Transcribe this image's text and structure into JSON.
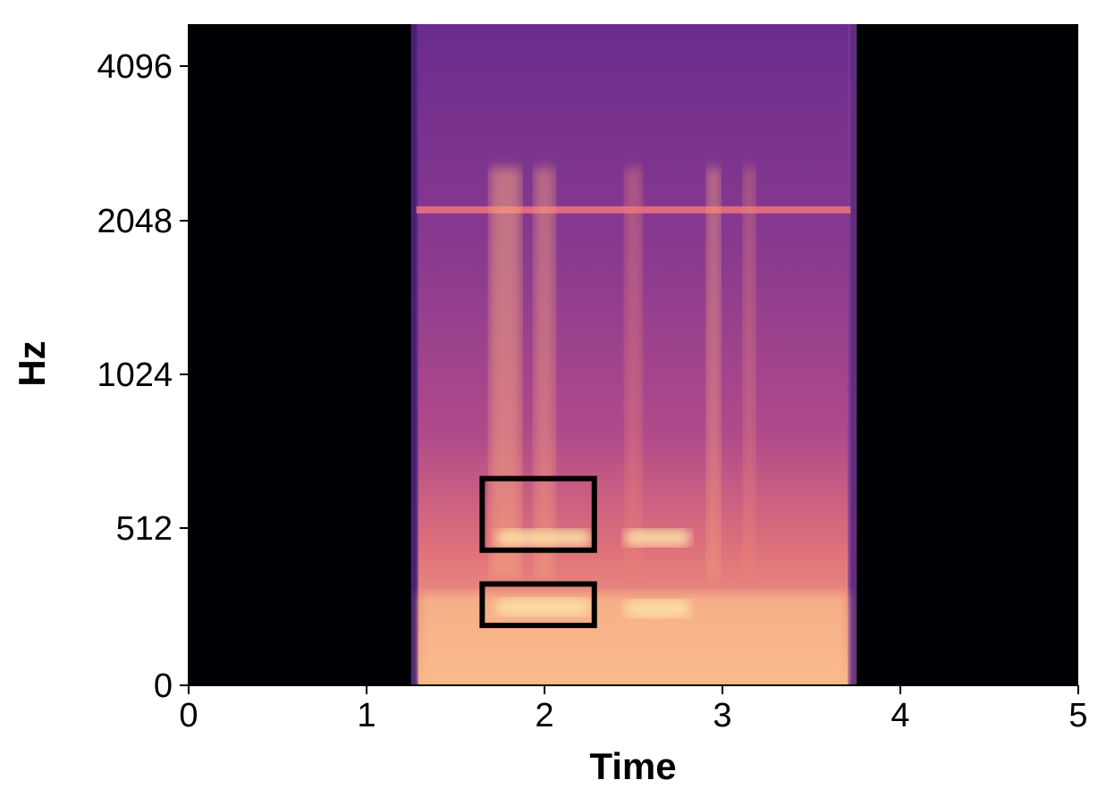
{
  "chart_data": {
    "type": "heatmap",
    "title": "",
    "xlabel": "Time",
    "ylabel": "Hz",
    "xlim": [
      0,
      5
    ],
    "x_ticks": [
      "0",
      "1",
      "2",
      "3",
      "4",
      "5"
    ],
    "y_scale": "symlog",
    "y_ticks": [
      "0",
      "512",
      "1024",
      "2048",
      "4096"
    ],
    "ylim": [
      0,
      5200
    ],
    "colormap": "magma",
    "signal_time_range": [
      1.28,
      3.72
    ],
    "background_color": "#000004",
    "horizontal_band_hz": 2150,
    "grid": false,
    "legend": "none",
    "annotations": [
      {
        "type": "rectangle",
        "color": "#000000",
        "x_range": [
          1.65,
          2.28
        ],
        "y_range_hz": [
          440,
          640
        ]
      },
      {
        "type": "rectangle",
        "color": "#000000",
        "x_range": [
          1.65,
          2.28
        ],
        "y_range_hz": [
          195,
          330
        ]
      }
    ],
    "highlighted_bands": [
      {
        "x_range": [
          1.73,
          2.26
        ],
        "hz": 480
      },
      {
        "x_range": [
          1.73,
          2.26
        ],
        "hz": 255
      },
      {
        "x_range": [
          2.45,
          2.82
        ],
        "hz": 480
      },
      {
        "x_range": [
          2.45,
          2.82
        ],
        "hz": 250
      }
    ]
  }
}
